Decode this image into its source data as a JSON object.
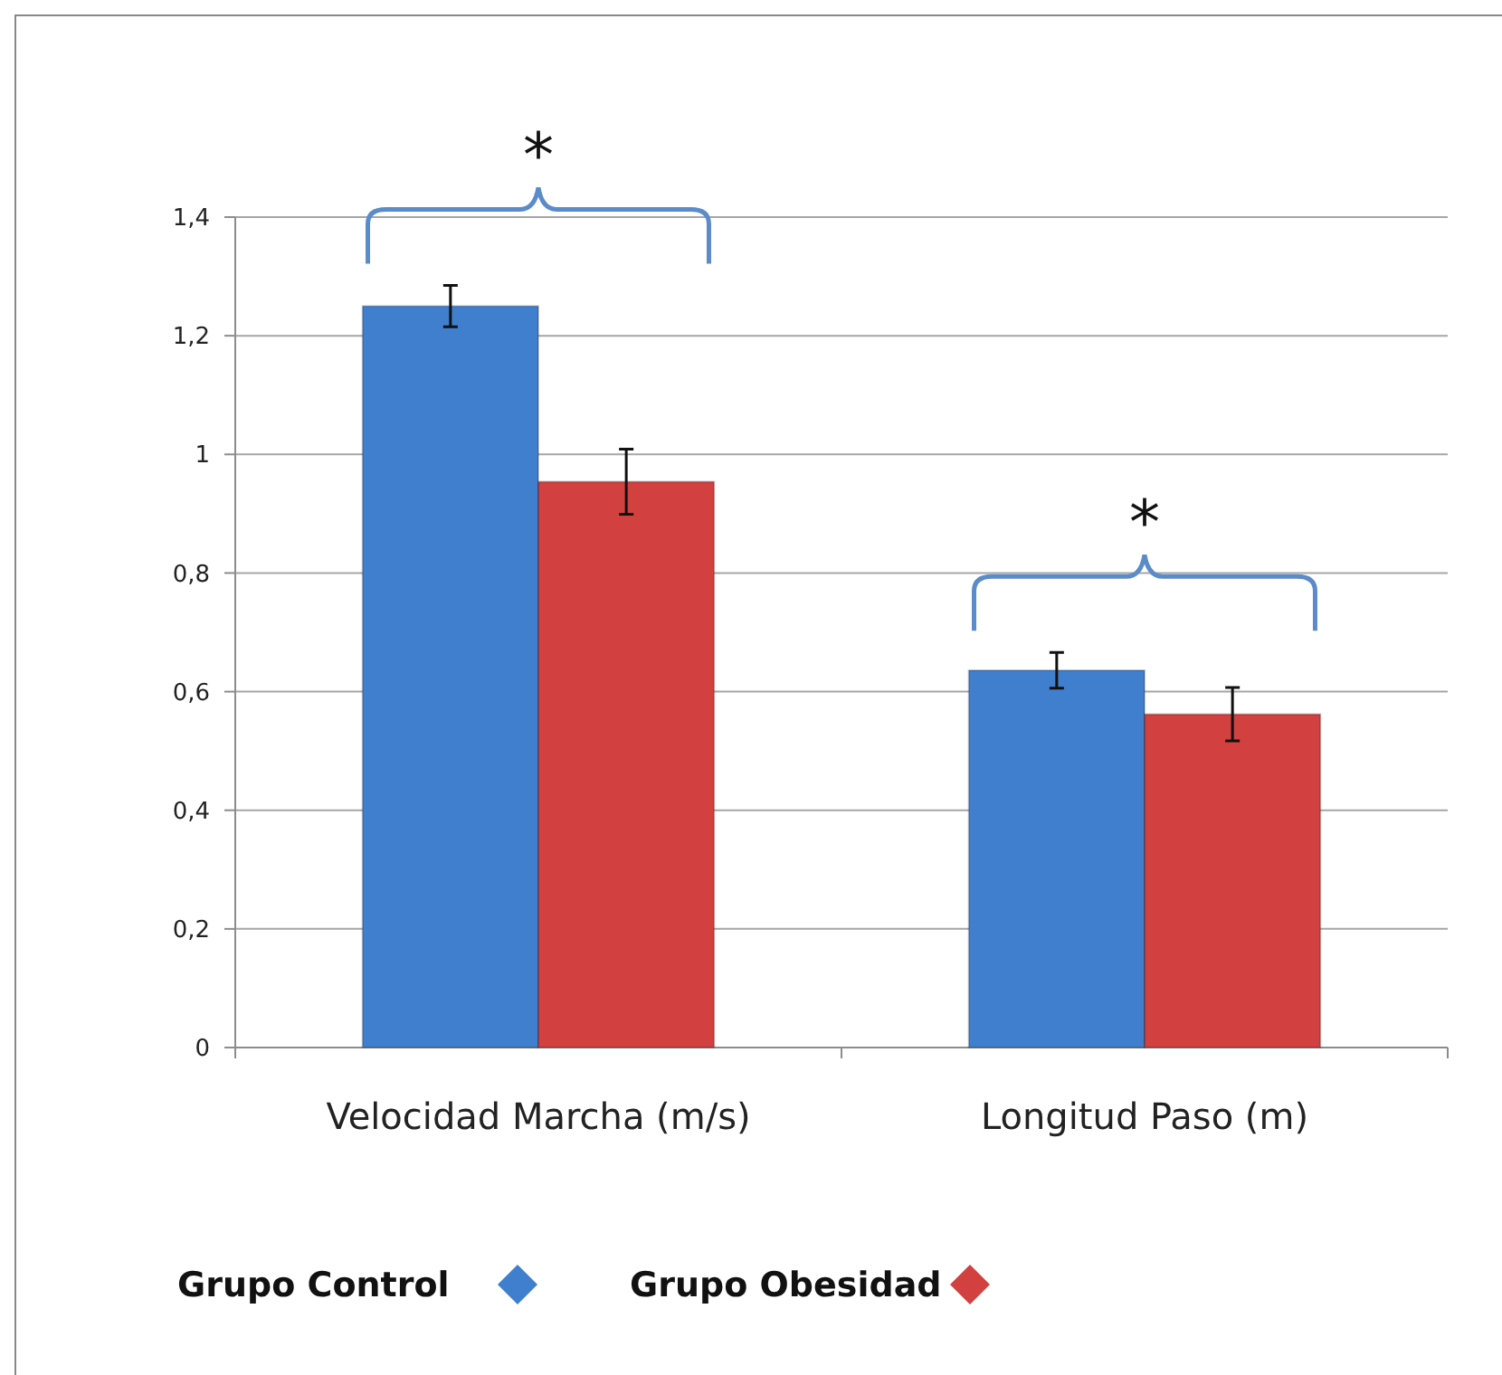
{
  "chart_data": {
    "type": "bar",
    "categories": [
      "Velocidad Marcha (m/s)",
      "Longitud Paso (m)"
    ],
    "series": [
      {
        "name": "Grupo Control",
        "color": "#3f7fce",
        "values": [
          1.25,
          0.636
        ],
        "errors": [
          0.035,
          0.03
        ]
      },
      {
        "name": "Grupo Obesidad",
        "color": "#d2403f",
        "values": [
          0.954,
          0.562
        ],
        "errors": [
          0.055,
          0.045
        ]
      }
    ],
    "ylim": [
      0,
      1.4
    ],
    "yticks": [
      {
        "value": 0,
        "label": "0"
      },
      {
        "value": 0.2,
        "label": "0,2"
      },
      {
        "value": 0.4,
        "label": "0,4"
      },
      {
        "value": 0.6,
        "label": "0,6"
      },
      {
        "value": 0.8,
        "label": "0,8"
      },
      {
        "value": 1,
        "label": "1"
      },
      {
        "value": 1.2,
        "label": "1,2"
      },
      {
        "value": 1.4,
        "label": "1,4"
      }
    ],
    "grid": "y",
    "legend": "bottom",
    "marker": "diamond",
    "annotations": [
      "*",
      "*"
    ]
  }
}
